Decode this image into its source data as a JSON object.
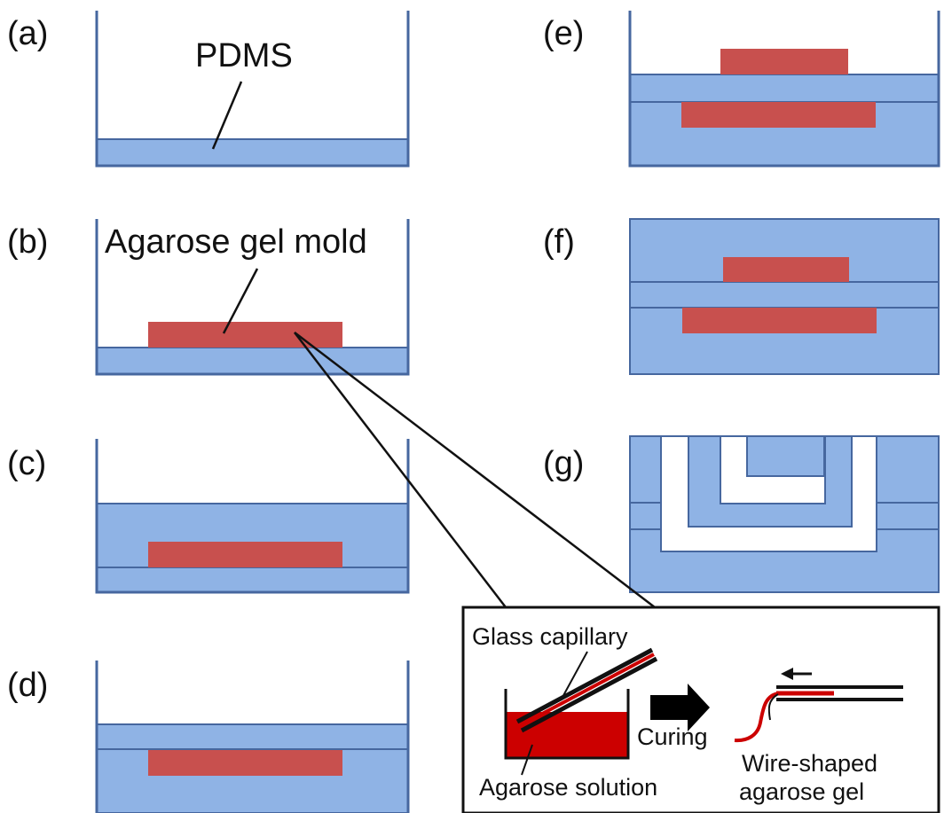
{
  "panels": {
    "a": "(a)",
    "b": "(b)",
    "c": "(c)",
    "d": "(d)",
    "e": "(e)",
    "f": "(f)",
    "g": "(g)"
  },
  "labels": {
    "pdms": "PDMS",
    "agarose_gel_mold": "Agarose gel mold"
  },
  "inset": {
    "glass_capillary": "Glass capillary",
    "curing": "Curing",
    "agarose_solution": "Agarose solution",
    "wire_shaped_line1": "Wire-shaped",
    "wire_shaped_line2": "agarose gel"
  },
  "colors": {
    "pdms": "#8fb3e5",
    "pdms_border": "#46679f",
    "gel": "#c8504e",
    "solution": "#cc0000",
    "arrow": "#000000"
  }
}
